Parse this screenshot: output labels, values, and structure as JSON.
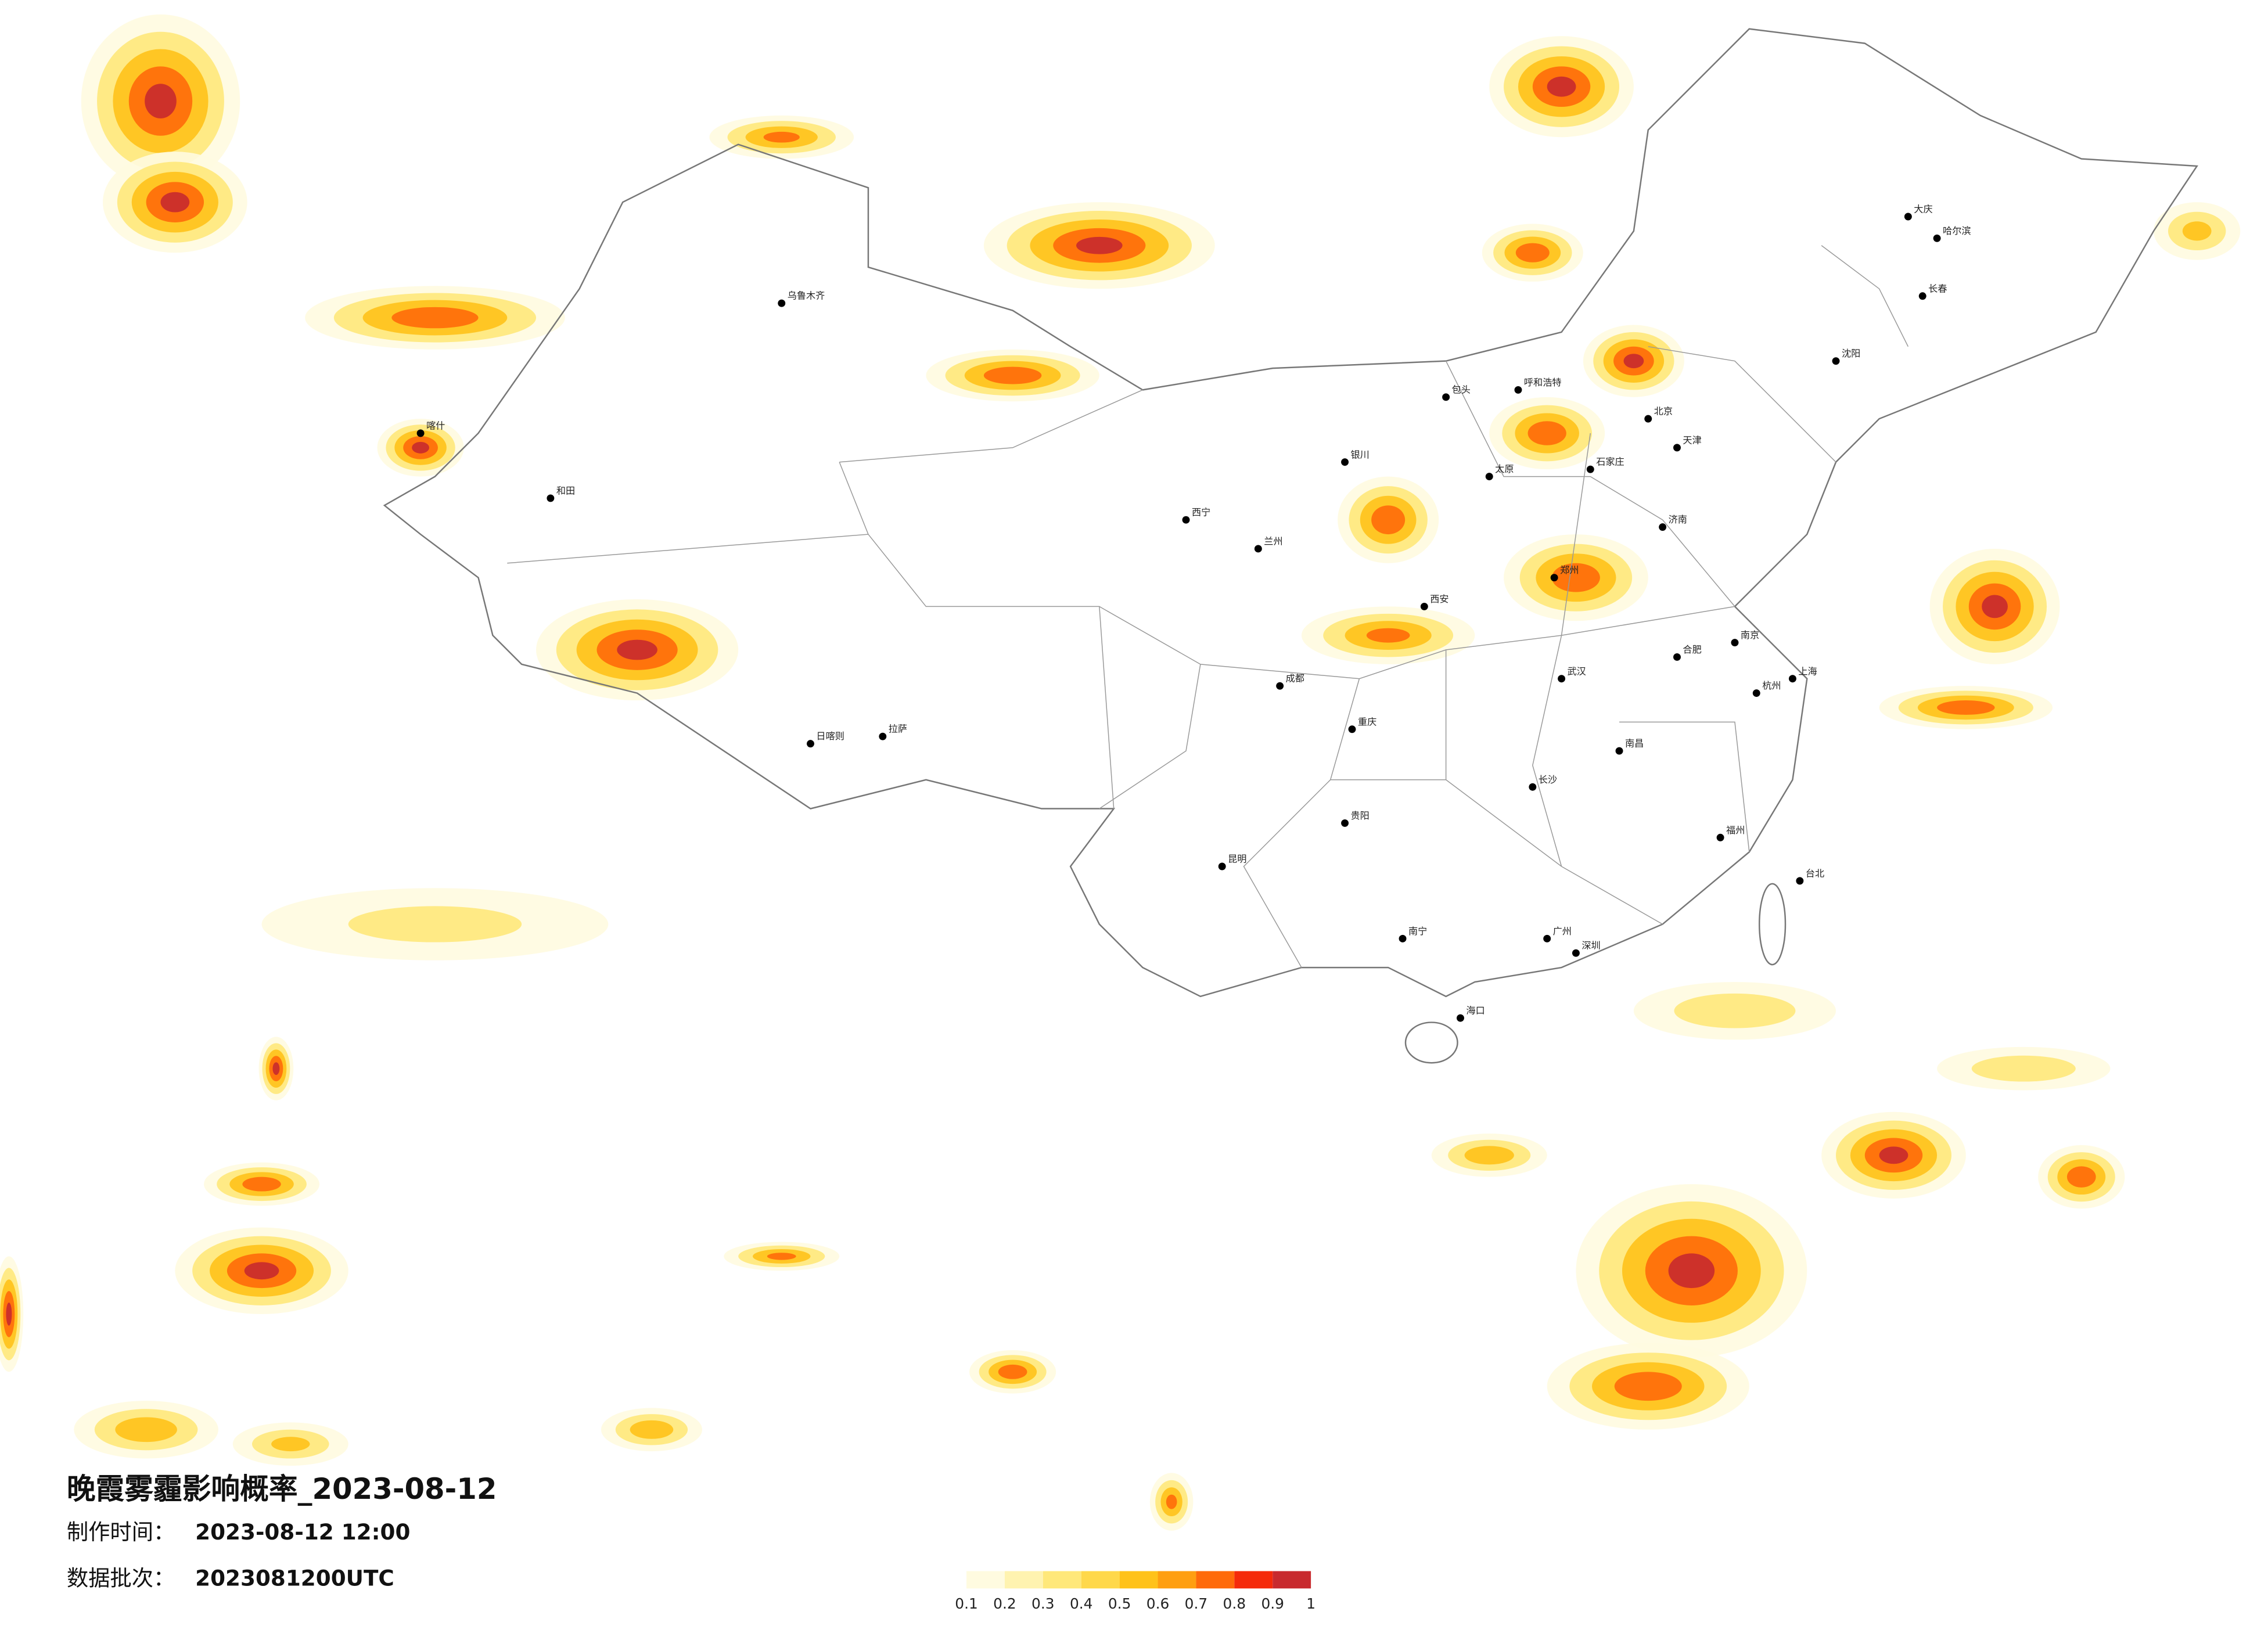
{
  "header": {
    "title": "晚霞雾霾影响概率_2023-08-12",
    "made_label": "制作时间：",
    "made_value": "2023-08-12 12:00",
    "batch_label": "数据批次：",
    "batch_value": "2023081200UTC"
  },
  "legend": {
    "ticks": [
      0.1,
      0.2,
      0.3,
      0.4,
      0.5,
      0.6,
      0.7,
      0.8,
      0.9,
      1
    ],
    "colors": [
      "#fffbe0",
      "#fff3b0",
      "#ffe87a",
      "#ffd84a",
      "#ffc21a",
      "#ff9f10",
      "#ff6a0a",
      "#f52a0a",
      "#c82a2e"
    ]
  },
  "cities": [
    "北京",
    "天津",
    "上海",
    "广州",
    "深圳",
    "重庆",
    "成都",
    "武汉",
    "西安",
    "郑州",
    "南京",
    "杭州",
    "长沙",
    "昆明",
    "贵阳",
    "南宁",
    "哈尔滨",
    "长春",
    "沈阳",
    "呼和浩特",
    "乌鲁木齐",
    "拉萨",
    "西宁",
    "兰州",
    "银川",
    "太原",
    "石家庄",
    "济南",
    "合肥",
    "南昌",
    "福州",
    "海口",
    "台北",
    "喀什",
    "和田",
    "日喀则",
    "大庆",
    "包头"
  ]
}
